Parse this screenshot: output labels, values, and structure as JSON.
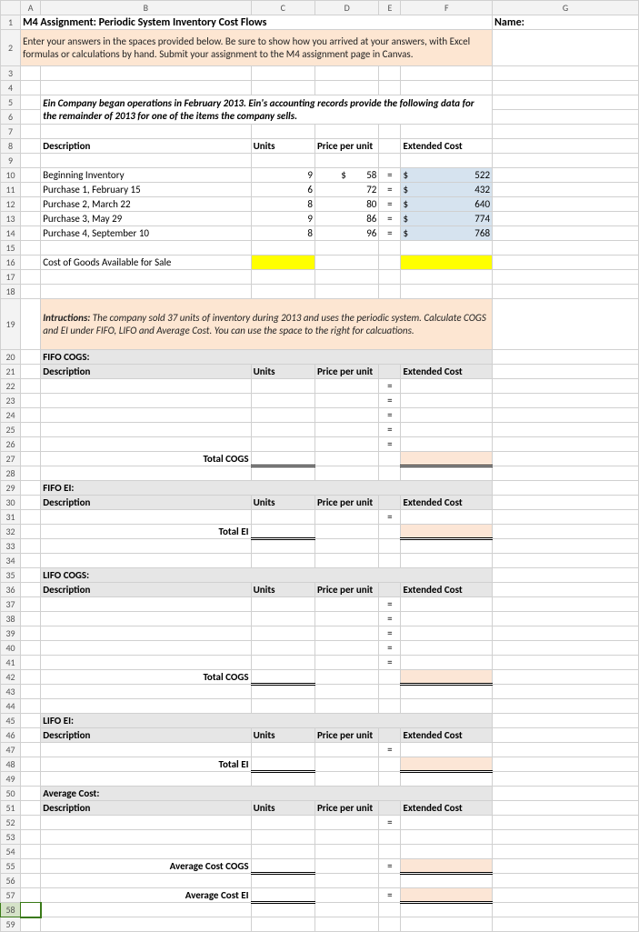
{
  "columns": [
    "",
    "A",
    "B",
    "C",
    "D",
    "E",
    "F",
    "G"
  ],
  "title": "M4 Assignment: Periodic System Inventory Cost Flows",
  "name_label": "Name:",
  "instructions_box": "Enter your answers in the spaces provided below. Be sure to show how you arrived at your answers, with Excel formulas or calculations by hand. Submit your assignment to the M4 assignment page in Canvas.",
  "scenario": "Ein Company began operations in February 2013.  Ein's accounting records provide the following data for the remainder of 2013 for one of the items the company sells.",
  "headers": {
    "desc": "Description",
    "units": "Units",
    "ppu": "Price per unit",
    "ext": "Extended Cost"
  },
  "rows": [
    {
      "desc": "Beginning Inventory",
      "units": 9,
      "ppu_prefix": "$",
      "ppu": 58,
      "eq": "=",
      "ext_prefix": "$",
      "ext": 522
    },
    {
      "desc": "Purchase 1, February 15",
      "units": 6,
      "ppu_prefix": "",
      "ppu": 72,
      "eq": "=",
      "ext_prefix": "$",
      "ext": 432
    },
    {
      "desc": "Purchase 2, March 22",
      "units": 8,
      "ppu_prefix": "",
      "ppu": 80,
      "eq": "=",
      "ext_prefix": "$",
      "ext": 640
    },
    {
      "desc": "Purchase 3, May 29",
      "units": 9,
      "ppu_prefix": "",
      "ppu": 86,
      "eq": "=",
      "ext_prefix": "$",
      "ext": 774
    },
    {
      "desc": "Purchase 4, September 10",
      "units": 8,
      "ppu_prefix": "",
      "ppu": 96,
      "eq": "=",
      "ext_prefix": "$",
      "ext": 768
    }
  ],
  "cogas_label": "Cost of Goods Available for Sale",
  "instructions2_label": "Intructions:",
  "instructions2_text": " The company sold 37 units of inventory during 2013 and uses the periodic system. Calculate COGS and EI under FIFO, LIFO and Average Cost.  You can use the space to the right for calcuations.",
  "sections": {
    "fifo_cogs": {
      "title": "FIFO COGS:",
      "eq_rows": 5,
      "total": "Total COGS"
    },
    "fifo_ei": {
      "title": "FIFO EI:",
      "eq_rows": 1,
      "total": "Total EI"
    },
    "lifo_cogs": {
      "title": "LIFO COGS:",
      "eq_rows": 5,
      "total": "Total COGS"
    },
    "lifo_ei": {
      "title": "LIFO EI:",
      "eq_rows": 1,
      "total": "Total EI"
    },
    "avg": {
      "title": "Average Cost:",
      "cogs": "Average Cost COGS",
      "ei": "Average Cost EI"
    }
  },
  "colors": {
    "grid": "#d0d0d0",
    "orange_bg": "#fde6d2",
    "orange_border": "#a35b14",
    "yellow": "#ffff00",
    "lblue": "#d6e3ef",
    "peach": "#fce6d6",
    "section_bg": "#e6e6e6"
  },
  "eq": "="
}
